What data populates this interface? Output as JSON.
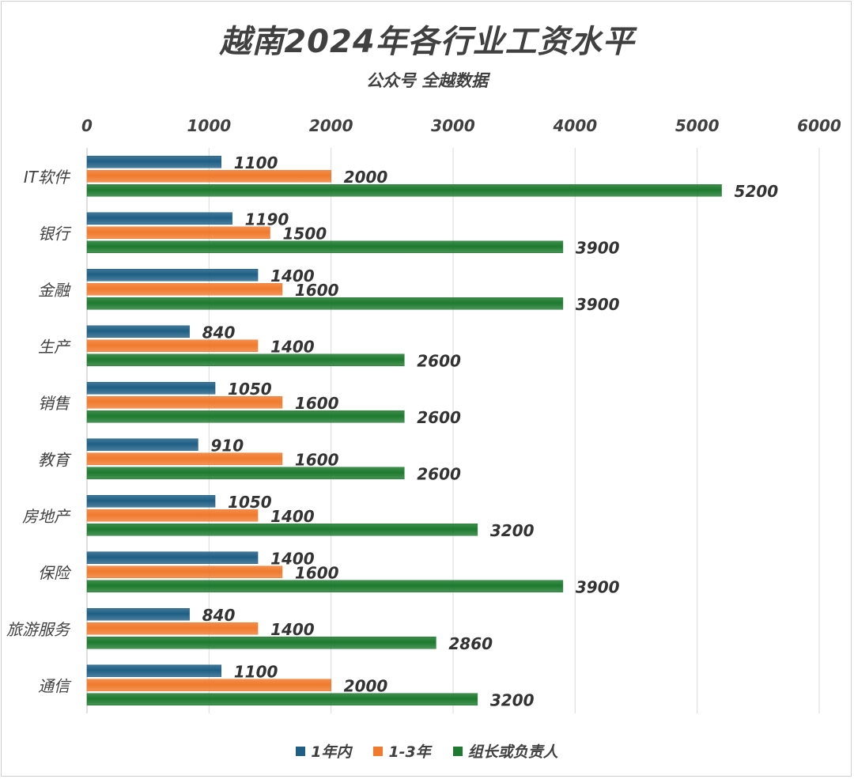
{
  "chart_data": {
    "type": "bar",
    "orientation": "horizontal",
    "title": "越南2024年各行业工资水平",
    "subtitle": "公众号 全越数据",
    "categories": [
      "IT软件",
      "银行",
      "金融",
      "生产",
      "销售",
      "教育",
      "房地产",
      "保险",
      "旅游服务",
      "通信"
    ],
    "series": [
      {
        "name": "1年内",
        "color": "#1f5f85",
        "values": [
          1100,
          1190,
          1400,
          840,
          1050,
          910,
          1050,
          1400,
          840,
          1100
        ]
      },
      {
        "name": "1-3年",
        "color": "#f07a2d",
        "values": [
          2000,
          1500,
          1600,
          1400,
          1600,
          1600,
          1400,
          1600,
          1400,
          2000
        ]
      },
      {
        "name": "组长或负责人",
        "color": "#1d7a2e",
        "values": [
          5200,
          3900,
          3900,
          2600,
          2600,
          2600,
          3200,
          3900,
          2860,
          3200
        ]
      }
    ],
    "xlim": [
      0,
      6000
    ],
    "xticks": [
      0,
      1000,
      2000,
      3000,
      4000,
      5000,
      6000
    ],
    "x_axis_position": "top",
    "grid": true,
    "legend": "bottom"
  }
}
